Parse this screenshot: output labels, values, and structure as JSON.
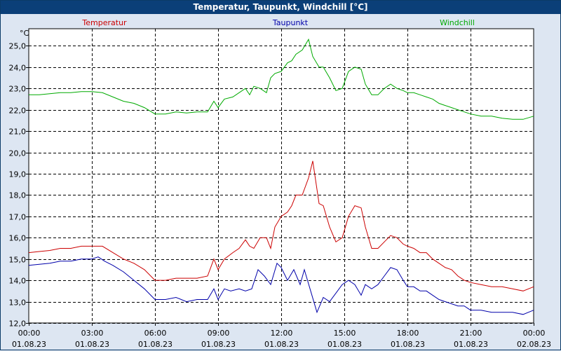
{
  "window": {
    "title": "Temperatur, Taupunkt, Windchill [°C]"
  },
  "chart_data": {
    "type": "line",
    "title": "Temperatur, Taupunkt, Windchill [°C]",
    "ylabel": "°C",
    "xlabel": "",
    "ylim": [
      12.0,
      25.8
    ],
    "xlim": [
      0,
      24
    ],
    "y_ticks": [
      "12,0",
      "13,0",
      "14,0",
      "15,0",
      "16,0",
      "17,0",
      "18,0",
      "19,0",
      "20,0",
      "21,0",
      "22,0",
      "23,0",
      "24,0",
      "25,0"
    ],
    "y_tick_values": [
      12,
      13,
      14,
      15,
      16,
      17,
      18,
      19,
      20,
      21,
      22,
      23,
      24,
      25
    ],
    "x_ticks": [
      {
        "time": "00:00",
        "date": "01.08.23",
        "value": 0
      },
      {
        "time": "03:00",
        "date": "01.08.23",
        "value": 3
      },
      {
        "time": "06:00",
        "date": "01.08.23",
        "value": 6
      },
      {
        "time": "09:00",
        "date": "01.08.23",
        "value": 9
      },
      {
        "time": "12:00",
        "date": "01.08.23",
        "value": 12
      },
      {
        "time": "15:00",
        "date": "01.08.23",
        "value": 15
      },
      {
        "time": "18:00",
        "date": "01.08.23",
        "value": 18
      },
      {
        "time": "21:00",
        "date": "01.08.23",
        "value": 21
      },
      {
        "time": "00:00",
        "date": "02.08.23",
        "value": 24
      }
    ],
    "grid": true,
    "series": [
      {
        "name": "Temperatur",
        "color": "#cc0000",
        "x": [
          0,
          0.5,
          1,
          1.5,
          2,
          2.5,
          3,
          3.5,
          4,
          4.5,
          5,
          5.5,
          6,
          6.5,
          7,
          7.5,
          8,
          8.5,
          8.8,
          9,
          9.3,
          9.7,
          10,
          10.3,
          10.5,
          10.7,
          11,
          11.3,
          11.5,
          11.7,
          12,
          12.3,
          12.5,
          12.7,
          13,
          13.3,
          13.5,
          13.8,
          14,
          14.3,
          14.6,
          14.9,
          15.2,
          15.5,
          15.8,
          16,
          16.3,
          16.6,
          16.9,
          17.2,
          17.5,
          17.8,
          18,
          18.3,
          18.6,
          18.9,
          19.2,
          19.5,
          19.8,
          20.1,
          20.4,
          20.7,
          21,
          21.5,
          22,
          22.5,
          23,
          23.5,
          24
        ],
        "y": [
          15.3,
          15.35,
          15.4,
          15.5,
          15.5,
          15.6,
          15.6,
          15.6,
          15.3,
          15.0,
          14.8,
          14.5,
          14.0,
          14.0,
          14.1,
          14.1,
          14.1,
          14.2,
          15.0,
          14.5,
          15.0,
          15.3,
          15.5,
          15.9,
          15.6,
          15.5,
          16.0,
          16.0,
          15.5,
          16.5,
          17.0,
          17.2,
          17.5,
          18.0,
          18.0,
          18.8,
          19.6,
          17.6,
          17.5,
          16.5,
          15.8,
          16.0,
          17.0,
          17.5,
          17.4,
          16.5,
          15.5,
          15.5,
          15.8,
          16.1,
          16.0,
          15.7,
          15.6,
          15.5,
          15.3,
          15.3,
          15.0,
          14.8,
          14.6,
          14.5,
          14.2,
          14.0,
          13.9,
          13.8,
          13.7,
          13.7,
          13.6,
          13.5,
          13.7
        ]
      },
      {
        "name": "Taupunkt",
        "color": "#0000aa",
        "x": [
          0,
          0.5,
          1,
          1.5,
          2,
          2.5,
          3,
          3.3,
          3.6,
          4,
          4.5,
          5,
          5.5,
          6,
          6.5,
          7,
          7.5,
          8,
          8.5,
          8.8,
          9,
          9.3,
          9.6,
          10,
          10.3,
          10.6,
          10.9,
          11.2,
          11.5,
          11.8,
          12,
          12.3,
          12.6,
          12.9,
          13.1,
          13.4,
          13.7,
          14,
          14.3,
          14.6,
          14.9,
          15.2,
          15.5,
          15.8,
          16,
          16.3,
          16.6,
          16.9,
          17.2,
          17.5,
          17.8,
          18,
          18.3,
          18.6,
          18.9,
          19.2,
          19.5,
          19.8,
          20.1,
          20.4,
          20.7,
          21,
          21.5,
          22,
          22.5,
          23,
          23.5,
          24
        ],
        "y": [
          14.7,
          14.75,
          14.8,
          14.9,
          14.9,
          15.0,
          15.0,
          15.1,
          14.9,
          14.7,
          14.4,
          14.0,
          13.6,
          13.1,
          13.1,
          13.2,
          13.0,
          13.1,
          13.1,
          13.6,
          13.1,
          13.6,
          13.5,
          13.6,
          13.5,
          13.6,
          14.5,
          14.2,
          13.8,
          14.8,
          14.6,
          14.0,
          14.5,
          13.8,
          14.5,
          13.5,
          12.5,
          13.2,
          13.0,
          13.4,
          13.8,
          14.0,
          13.8,
          13.3,
          13.8,
          13.6,
          13.8,
          14.2,
          14.6,
          14.5,
          14.0,
          13.7,
          13.7,
          13.5,
          13.5,
          13.3,
          13.1,
          13.0,
          12.9,
          12.8,
          12.8,
          12.6,
          12.6,
          12.5,
          12.5,
          12.5,
          12.4,
          12.6
        ]
      },
      {
        "name": "Windchill",
        "color": "#00aa00",
        "x": [
          0,
          0.5,
          1,
          1.5,
          2,
          2.5,
          3,
          3.5,
          4,
          4.5,
          5,
          5.5,
          6,
          6.5,
          7,
          7.5,
          8,
          8.5,
          8.8,
          9,
          9.3,
          9.7,
          10,
          10.3,
          10.5,
          10.7,
          11,
          11.3,
          11.5,
          11.7,
          12,
          12.3,
          12.5,
          12.7,
          13,
          13.3,
          13.5,
          13.8,
          14,
          14.3,
          14.6,
          14.9,
          15.2,
          15.5,
          15.8,
          16,
          16.3,
          16.6,
          16.9,
          17.2,
          17.5,
          17.8,
          18,
          18.3,
          18.6,
          18.9,
          19.2,
          19.5,
          19.8,
          20.1,
          20.4,
          20.7,
          21,
          21.5,
          22,
          22.5,
          23,
          23.5,
          24
        ],
        "y": [
          22.7,
          22.7,
          22.75,
          22.8,
          22.8,
          22.85,
          22.85,
          22.8,
          22.6,
          22.4,
          22.3,
          22.1,
          21.8,
          21.8,
          21.9,
          21.85,
          21.9,
          21.9,
          22.4,
          22.1,
          22.5,
          22.6,
          22.8,
          23.0,
          22.7,
          23.1,
          23.0,
          22.8,
          23.5,
          23.7,
          23.8,
          24.2,
          24.3,
          24.6,
          24.8,
          25.3,
          24.5,
          24.0,
          24.0,
          23.5,
          22.9,
          23.0,
          23.8,
          24.0,
          23.9,
          23.2,
          22.7,
          22.7,
          23.0,
          23.2,
          23.0,
          22.9,
          22.8,
          22.8,
          22.7,
          22.6,
          22.5,
          22.3,
          22.2,
          22.1,
          22.0,
          21.9,
          21.8,
          21.7,
          21.7,
          21.6,
          21.55,
          21.55,
          21.7
        ]
      }
    ]
  }
}
